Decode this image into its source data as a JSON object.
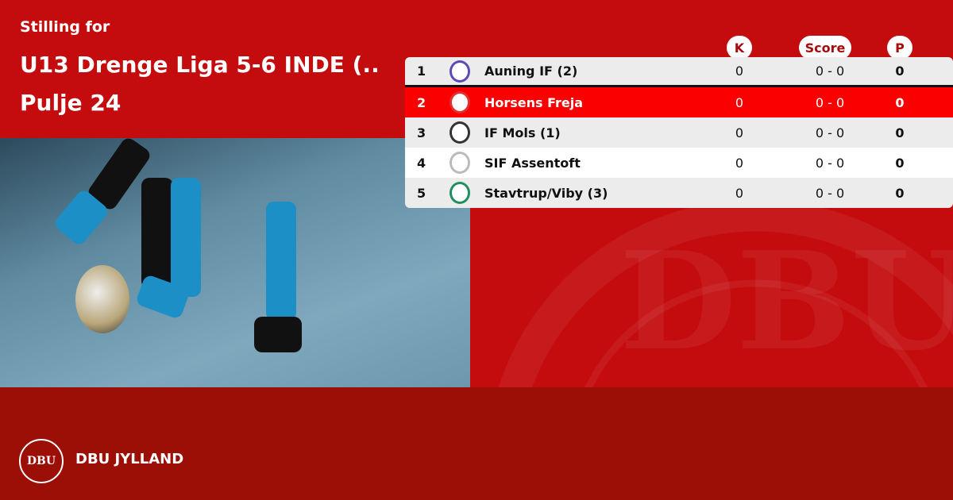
{
  "header": {
    "subtitle": "Stilling for",
    "title_line1": "U13 Drenge Liga 5-6 INDE (..",
    "title_line2": "Pulje 24"
  },
  "columns": {
    "k": "K",
    "score": "Score",
    "p": "P"
  },
  "rows": [
    {
      "pos": "1",
      "team": "Auning IF (2)",
      "k": "0",
      "score": "0 - 0",
      "p": "0",
      "crest_color": "#5a4bb5"
    },
    {
      "pos": "2",
      "team": "Horsens Freja",
      "k": "0",
      "score": "0 - 0",
      "p": "0",
      "crest_color": "#e23030",
      "highlight": true
    },
    {
      "pos": "3",
      "team": "IF Mols  (1)",
      "k": "0",
      "score": "0 - 0",
      "p": "0",
      "crest_color": "#333333"
    },
    {
      "pos": "4",
      "team": "SIF Assentoft",
      "k": "0",
      "score": "0 - 0",
      "p": "0",
      "crest_color": "#bbbbbb"
    },
    {
      "pos": "5",
      "team": "Stavtrup/Viby (3)",
      "k": "0",
      "score": "0 - 0",
      "p": "0",
      "crest_color": "#1f8f5f"
    }
  ],
  "footer": {
    "brand": "DBU JYLLAND",
    "logo_text": "DBU"
  },
  "colors": {
    "primary": "#c40c0f",
    "footer": "#9c0f06",
    "highlight": "#fa0000"
  }
}
